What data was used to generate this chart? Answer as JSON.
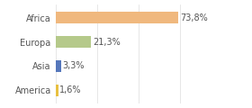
{
  "categories": [
    "Africa",
    "Europa",
    "Asia",
    "America"
  ],
  "values": [
    73.8,
    21.3,
    3.3,
    1.6
  ],
  "labels": [
    "73,8%",
    "21,3%",
    "3,3%",
    "1,6%"
  ],
  "bar_colors": [
    "#f0b87e",
    "#b5c98a",
    "#5577bb",
    "#e8c040"
  ],
  "background_color": "#ffffff",
  "xlim": [
    0,
    100
  ],
  "bar_height": 0.5,
  "label_fontsize": 7,
  "tick_fontsize": 7,
  "text_color": "#555555",
  "grid_color": "#dddddd"
}
